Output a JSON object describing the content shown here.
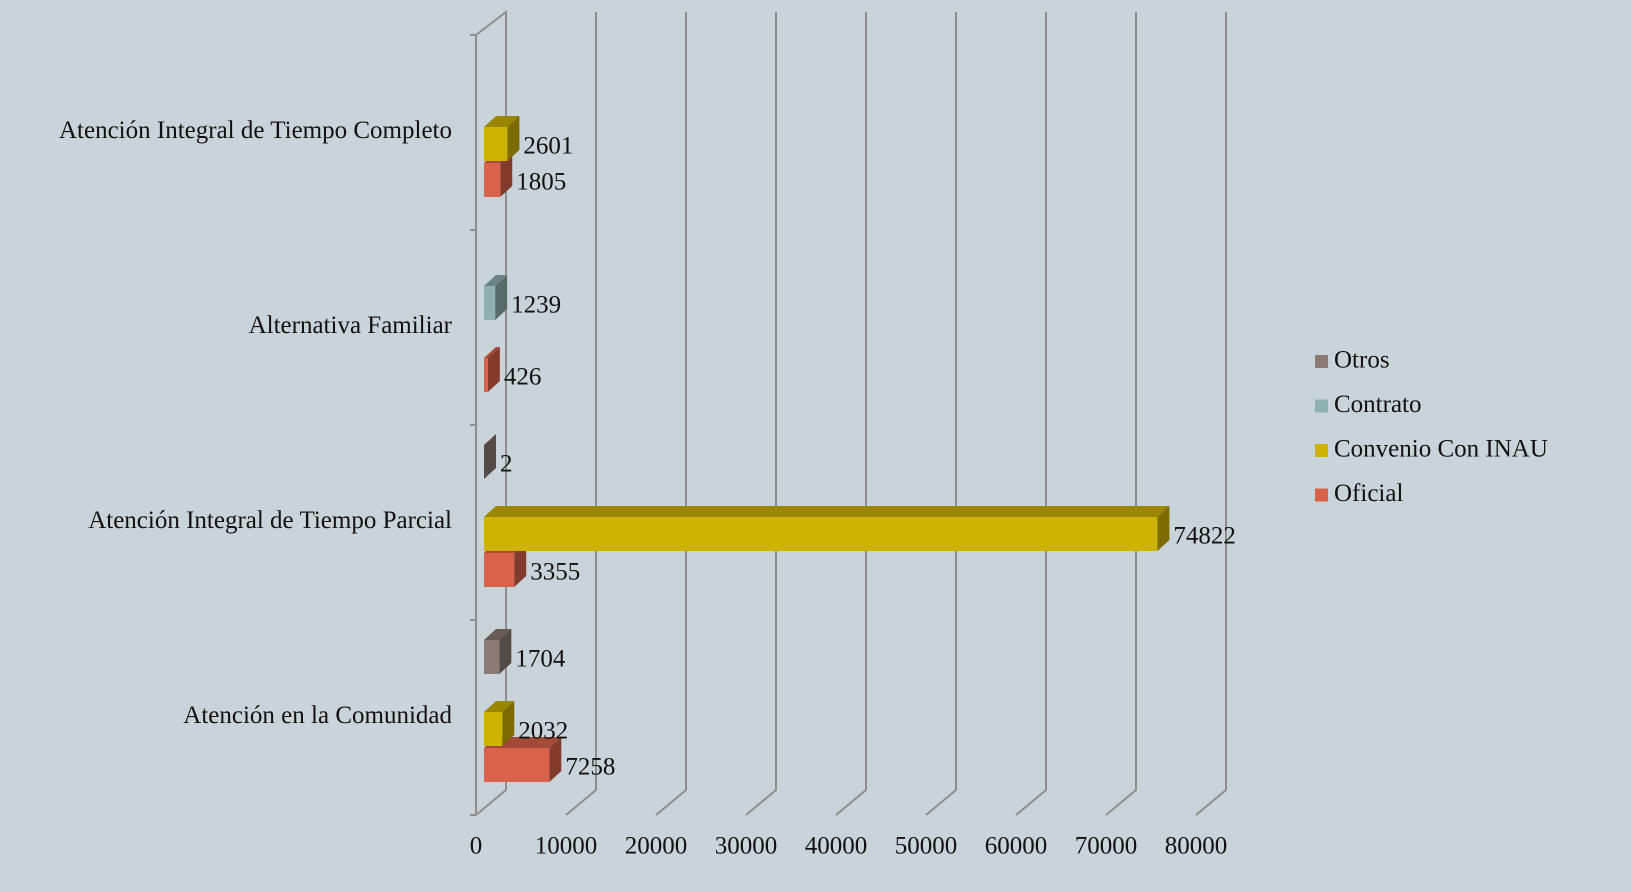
{
  "chart_data": {
    "type": "bar3d_horizontal",
    "categories": [
      "Atención en la Comunidad",
      "Atención Integral de Tiempo Parcial",
      "Alternativa Familiar",
      "Atención Integral de Tiempo Completo"
    ],
    "series": [
      {
        "name": "Oficial",
        "color": "#d9634a",
        "values": [
          7258,
          3355,
          426,
          1805
        ]
      },
      {
        "name": "Convenio Con INAU",
        "color": "#cdb300",
        "values": [
          2032,
          74822,
          null,
          2601
        ]
      },
      {
        "name": "Contrato",
        "color": "#8fb0b0",
        "values": [
          null,
          null,
          1239,
          null
        ]
      },
      {
        "name": "Otros",
        "color": "#8c7b74",
        "values": [
          1704,
          2,
          null,
          null
        ]
      }
    ],
    "xlim": [
      0,
      80000
    ],
    "xticks": [
      0,
      10000,
      20000,
      30000,
      40000,
      50000,
      60000,
      70000,
      80000
    ],
    "grid": true,
    "legend": "right"
  }
}
